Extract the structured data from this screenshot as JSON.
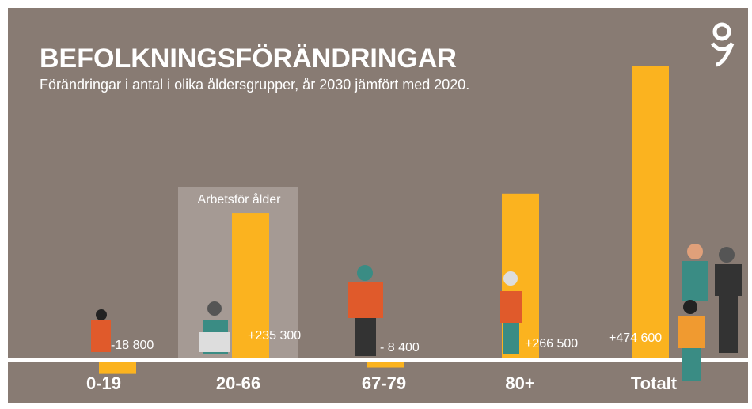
{
  "chart_data": {
    "type": "bar",
    "title": "BEFOLKNINGSFÖRÄNDRINGAR",
    "subtitle": "Förändringar i antal i olika åldersgrupper, år 2030 jämfört med 2020.",
    "annotation": "Arbetsför ålder",
    "categories": [
      "0-19",
      "20-66",
      "67-79",
      "80+",
      "Totalt"
    ],
    "values": [
      -18800,
      235300,
      -8400,
      266500,
      474600
    ],
    "value_labels": [
      "-18 800",
      "+235 300",
      "- 8 400",
      "+266 500",
      "+474 600"
    ],
    "color": "#fbb31f"
  }
}
